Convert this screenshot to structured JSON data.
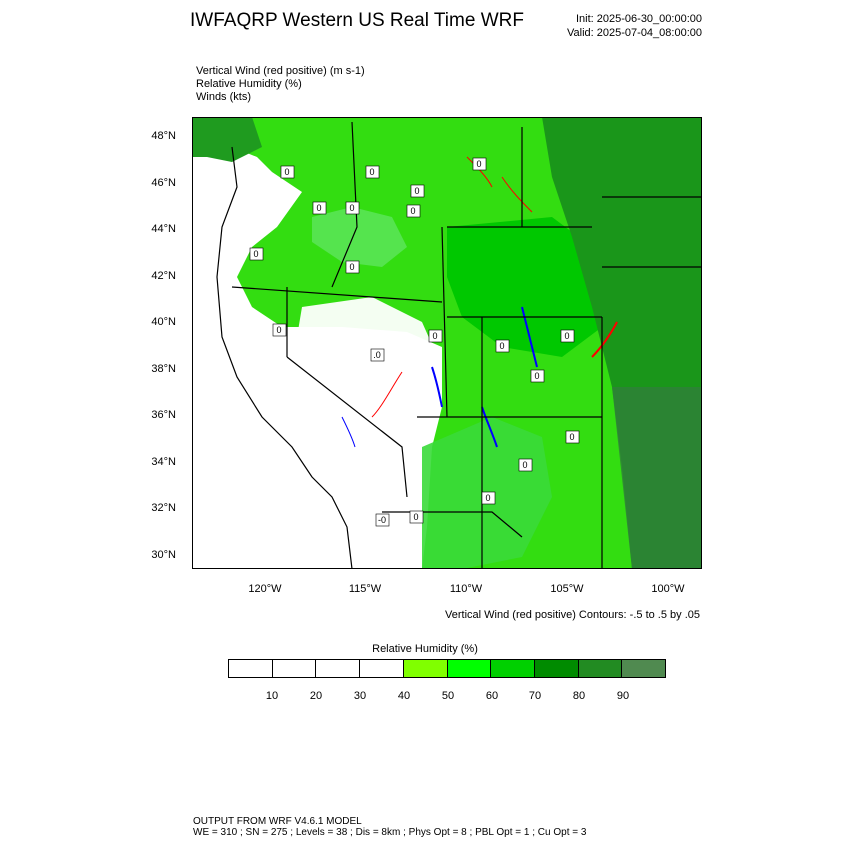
{
  "header": {
    "title": "IWFAQRP Western US Real Time WRF",
    "init": "Init: 2025-06-30_00:00:00",
    "valid": "Valid: 2025-07-04_08:00:00"
  },
  "fields": [
    "Vertical Wind (red positive)   (m s-1)",
    "Relative Humidity   (%)",
    "Winds   (kts)"
  ],
  "map": {
    "lat_labels": [
      "48°N",
      "46°N",
      "44°N",
      "42°N",
      "40°N",
      "38°N",
      "36°N",
      "34°N",
      "32°N",
      "30°N"
    ],
    "lon_labels": [
      "120°W",
      "115°W",
      "110°W",
      "105°W",
      "100°W"
    ],
    "contour_labels": [
      "0",
      "0",
      "0",
      "0",
      "0",
      "0",
      "0",
      "0",
      "0",
      "0",
      "0",
      ".0",
      "0",
      "0",
      "0",
      "0",
      "-0",
      "0",
      "0",
      "0"
    ],
    "colors": {
      "land_dry": "#ffffff",
      "humid_light": "#7cfc00",
      "humid_mid": "#00cd00",
      "humid_dark": "#228b22",
      "updraft": "#ff0000",
      "downdraft": "#0000ff"
    }
  },
  "contour_note": "Vertical Wind (red positive) Contours: -.5 to .5 by .05",
  "legend": {
    "title": "Relative Humidity   (%)",
    "swatch_colors": [
      "#ffffff",
      "#ffffff",
      "#ffffff",
      "#ffffff",
      "#80ff00",
      "#00ff00",
      "#00d000",
      "#008b00",
      "#228b22",
      "#508a50"
    ],
    "labels": [
      "10",
      "20",
      "30",
      "40",
      "50",
      "60",
      "70",
      "80",
      "90"
    ]
  },
  "footer": {
    "line1": "OUTPUT FROM WRF V4.6.1 MODEL",
    "line2": "WE = 310 ; SN = 275 ; Levels = 38 ; Dis = 8km ; Phys Opt = 8 ; PBL Opt = 1 ; Cu Opt = 3"
  }
}
